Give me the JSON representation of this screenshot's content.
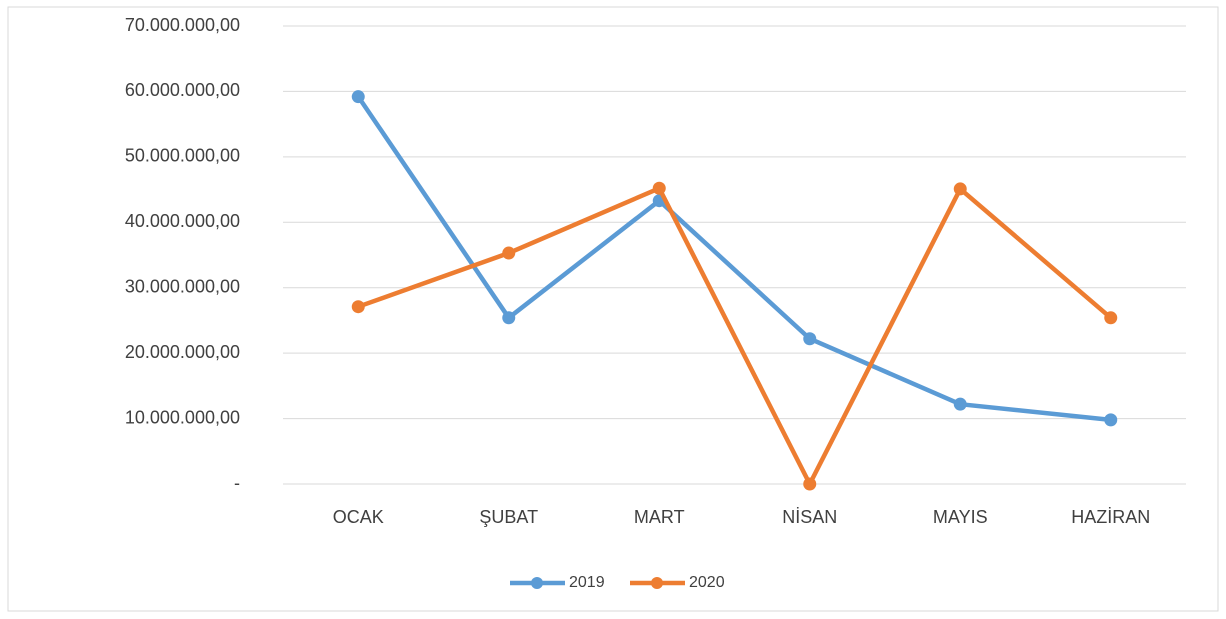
{
  "chart_data": {
    "type": "line",
    "categories": [
      "OCAK",
      "ŞUBAT",
      "MART",
      "NİSAN",
      "MAYIS",
      "HAZİRAN"
    ],
    "series": [
      {
        "name": "2019",
        "color": "#5b9bd5",
        "values": [
          59200000,
          25400000,
          43300000,
          22200000,
          12200000,
          9800000
        ]
      },
      {
        "name": "2020",
        "color": "#ed7d31",
        "values": [
          27100000,
          35300000,
          45200000,
          0,
          45100000,
          25400000
        ]
      }
    ],
    "ylim": [
      0,
      70000000
    ],
    "yticks": [
      {
        "value": 0,
        "label": "-"
      },
      {
        "value": 10000000,
        "label": "10.000.000,00"
      },
      {
        "value": 20000000,
        "label": "20.000.000,00"
      },
      {
        "value": 30000000,
        "label": "30.000.000,00"
      },
      {
        "value": 40000000,
        "label": "40.000.000,00"
      },
      {
        "value": 50000000,
        "label": "50.000.000,00"
      },
      {
        "value": 60000000,
        "label": "60.000.000,00"
      },
      {
        "value": 70000000,
        "label": "70.000.000,00"
      }
    ],
    "grid": true,
    "legend": "bottom"
  }
}
